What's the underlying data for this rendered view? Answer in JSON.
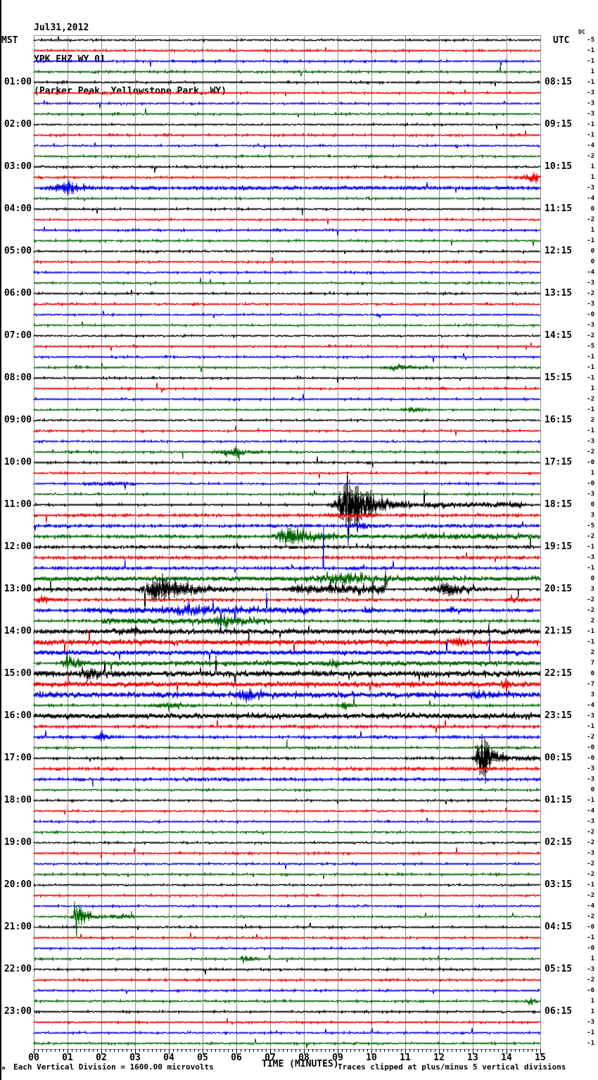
{
  "header": {
    "date": "Jul31,2012",
    "station": "YPK EHZ WY 01",
    "location": "(Parker Peak, Yellowstone Park, WY)"
  },
  "left_axis": {
    "label": "MST",
    "hours": [
      "01:00",
      "02:00",
      "03:00",
      "04:00",
      "05:00",
      "06:00",
      "07:00",
      "08:00",
      "09:00",
      "10:00",
      "11:00",
      "12:00",
      "13:00",
      "14:00",
      "15:00",
      "16:00",
      "17:00",
      "18:00",
      "19:00",
      "20:00",
      "21:00",
      "22:00",
      "23:00"
    ]
  },
  "right_axis": {
    "label": "UTC",
    "dc_label": "DC",
    "hours": [
      "08:15",
      "09:15",
      "10:15",
      "11:15",
      "12:15",
      "13:15",
      "14:15",
      "15:15",
      "16:15",
      "17:15",
      "18:15",
      "19:15",
      "20:15",
      "21:15",
      "22:15",
      "23:15",
      "00:15",
      "01:15",
      "02:15",
      "03:15",
      "04:15",
      "05:15",
      "06:15"
    ],
    "dc_values": [
      "-5",
      "-1",
      "-1",
      "1",
      "-1",
      "-3",
      "-3",
      "-3",
      "-1",
      "-1",
      "-4",
      "-2",
      "1",
      "1",
      "-3",
      "-4",
      "0",
      "-2",
      "1",
      "-1",
      "0",
      "0",
      "-4",
      "-3",
      "-2",
      "-3",
      "-0",
      "-3",
      "-2",
      "-5",
      "-1",
      "-1",
      "-1",
      "1",
      "-2",
      "-1",
      "2",
      "-1",
      "-3",
      "-2",
      "-0",
      "1",
      "-0",
      "-3",
      "0",
      "3",
      "-5",
      "-2",
      "-1",
      "-3",
      "-1",
      "0",
      "3",
      "-2",
      "-2",
      "2",
      "-1",
      "-1",
      "2",
      "7",
      "0",
      "-7",
      "3",
      "-4",
      "-3",
      "-1",
      "-2",
      "-0",
      "-0",
      "-3",
      "-3",
      "0",
      "-1",
      "-4",
      "-3",
      "-2",
      "-2",
      "-3",
      "-2",
      "-2",
      "-1",
      "-2",
      "-4",
      "-2",
      "-0",
      "-1",
      "-0",
      "1",
      "-3",
      "-2",
      "-6",
      "1",
      "1",
      "-3",
      "-1",
      "-1"
    ]
  },
  "x_axis": {
    "labels": [
      "00",
      "01",
      "02",
      "03",
      "04",
      "05",
      "06",
      "07",
      "08",
      "09",
      "10",
      "11",
      "12",
      "13",
      "14",
      "15"
    ],
    "title": "TIME (MINUTES)"
  },
  "footer": {
    "left_note": "Each Vertical Division = 1600.00 microvolts",
    "right_note": "Traces clipped at plus/minus 5 vertical divisions",
    "corner_mark": "M"
  },
  "chart_data": {
    "type": "line",
    "subtype": "helicorder-seismogram",
    "title": "YPK EHZ WY 01 (Parker Peak, Yellowstone Park, WY) Jul31,2012",
    "x_axis_title": "TIME (MINUTES)",
    "x_range": [
      0,
      15
    ],
    "rows": 96,
    "minutes_per_row": 15,
    "first_row_mst": "00:00",
    "trace_color_cycle": [
      "#000000",
      "#ee0000",
      "#0000ee",
      "#006600"
    ],
    "grid_color": "#909090",
    "grid_on": true,
    "clip_divisions": 5,
    "events": [
      {
        "row": 13,
        "type": "burst",
        "start": 14.05,
        "peak": 14.9,
        "end": 15,
        "amp": 9
      },
      {
        "row": 14,
        "type": "burst",
        "start": 0,
        "peak": 1.0,
        "end": 2.6,
        "amp": 11
      },
      {
        "row": 14,
        "type": "elevated",
        "start": 2.6,
        "end": 15,
        "amp": 1.3
      },
      {
        "row": 16,
        "type": "spike",
        "at": 7.95,
        "dir": -1,
        "amp": 9
      },
      {
        "row": 31,
        "type": "burst",
        "start": 10.0,
        "peak": 10.8,
        "end": 12.2,
        "amp": 4
      },
      {
        "row": 35,
        "type": "burst",
        "start": 10.6,
        "peak": 11.2,
        "end": 12.0,
        "amp": 4
      },
      {
        "row": 39,
        "type": "burst",
        "start": 4.9,
        "peak": 6.0,
        "end": 7.0,
        "amp": 5
      },
      {
        "row": 39,
        "type": "spike",
        "at": 4.42,
        "dir": -1,
        "amp": 10
      },
      {
        "row": 39,
        "type": "spike",
        "at": 6.08,
        "dir": -1,
        "amp": 14
      },
      {
        "row": 40,
        "type": "spike",
        "at": 10.05,
        "dir": -1,
        "amp": 7
      },
      {
        "row": 42,
        "type": "elevated",
        "start": 1.5,
        "end": 3.0,
        "amp": 2
      },
      {
        "row": 44,
        "type": "burst",
        "start": 8.65,
        "peak": 9.3,
        "end": 11.5,
        "amp": 46,
        "clip": 47
      },
      {
        "row": 44,
        "type": "spike",
        "at": 9.3,
        "dir": 0,
        "amp": 47
      },
      {
        "row": 44,
        "type": "elevated",
        "start": 11.5,
        "end": 14.5,
        "amp": 3
      },
      {
        "row": 45,
        "type": "elevated",
        "start": 8.7,
        "end": 10.2,
        "amp": 2.5
      },
      {
        "row": 46,
        "type": "burst",
        "start": 9.2,
        "peak": 9.6,
        "end": 10.6,
        "amp": 6
      },
      {
        "row": 46,
        "type": "spike",
        "at": 9.32,
        "dir": -1,
        "amp": 28
      },
      {
        "row": 47,
        "type": "burst",
        "start": 6.95,
        "peak": 7.4,
        "end": 10.8,
        "amp": 13
      },
      {
        "row": 47,
        "type": "elevated",
        "start": 10.8,
        "end": 15,
        "amp": 3
      },
      {
        "row": 50,
        "type": "spike",
        "at": 2.7,
        "dir": 1,
        "amp": 13
      },
      {
        "row": 50,
        "type": "spike",
        "at": 8.58,
        "dir": 1,
        "amp": 60
      },
      {
        "row": 51,
        "type": "elevated",
        "start": 0,
        "end": 15,
        "amp": 2.2
      },
      {
        "row": 51,
        "type": "burst",
        "start": 7.6,
        "peak": 9.0,
        "end": 12.5,
        "amp": 6
      },
      {
        "row": 52,
        "type": "elevated",
        "start": 0,
        "end": 2.78,
        "amp": 1.5
      },
      {
        "row": 52,
        "type": "burst",
        "start": 2.78,
        "peak": 3.6,
        "end": 7.6,
        "amp": 17
      },
      {
        "row": 52,
        "type": "elevated",
        "start": 7.6,
        "end": 10.4,
        "amp": 6
      },
      {
        "row": 52,
        "type": "burst",
        "start": 11.3,
        "peak": 12.3,
        "end": 13.9,
        "amp": 12
      },
      {
        "row": 52,
        "type": "spike",
        "at": 10.42,
        "dir": 1,
        "amp": 26
      },
      {
        "row": 52,
        "type": "spike",
        "at": 14.35,
        "dir": -1,
        "amp": 12
      },
      {
        "row": 53,
        "type": "burst",
        "start": 0,
        "peak": 0.25,
        "end": 1.0,
        "amp": 6
      },
      {
        "row": 53,
        "type": "burst",
        "start": 13.8,
        "peak": 14.2,
        "end": 14.8,
        "amp": 5
      },
      {
        "row": 54,
        "type": "elevated",
        "start": 1.5,
        "end": 8.5,
        "amp": 3.5
      },
      {
        "row": 54,
        "type": "burst",
        "start": 3.5,
        "peak": 4.5,
        "end": 7.8,
        "amp": 5
      },
      {
        "row": 54,
        "type": "burst",
        "start": 9.6,
        "peak": 9.9,
        "end": 10.4,
        "amp": 5
      },
      {
        "row": 54,
        "type": "burst",
        "start": 12.0,
        "peak": 12.4,
        "end": 13.0,
        "amp": 5
      },
      {
        "row": 55,
        "type": "elevated",
        "start": 2,
        "end": 7,
        "amp": 3
      },
      {
        "row": 55,
        "type": "burst",
        "start": 5.1,
        "peak": 5.6,
        "end": 6.9,
        "amp": 6
      },
      {
        "row": 55,
        "type": "spike",
        "at": 4.7,
        "dir": -1,
        "amp": 8
      },
      {
        "row": 56,
        "type": "elevated",
        "start": 0,
        "end": 15,
        "amp": 2.6
      },
      {
        "row": 56,
        "type": "spike",
        "at": 6.38,
        "dir": -1,
        "amp": 20
      },
      {
        "row": 56,
        "type": "spike",
        "at": 13.48,
        "dir": 0,
        "amp": 12
      },
      {
        "row": 56,
        "type": "burst",
        "start": 2.6,
        "peak": 3.0,
        "end": 3.6,
        "amp": 4
      },
      {
        "row": 57,
        "type": "elevated",
        "start": 0,
        "end": 15,
        "amp": 2.6
      },
      {
        "row": 57,
        "type": "burst",
        "start": 11.9,
        "peak": 12.6,
        "end": 13.2,
        "amp": 6
      },
      {
        "row": 58,
        "type": "elevated",
        "start": 0,
        "end": 15,
        "amp": 2.2
      },
      {
        "row": 58,
        "type": "spike",
        "at": 13.5,
        "dir": 0,
        "amp": 26
      },
      {
        "row": 59,
        "type": "burst",
        "start": 0.7,
        "peak": 1.0,
        "end": 2.2,
        "amp": 12
      },
      {
        "row": 59,
        "type": "elevated",
        "start": 2.2,
        "end": 15,
        "amp": 2.4
      },
      {
        "row": 59,
        "type": "burst",
        "start": 8.5,
        "peak": 8.8,
        "end": 9.3,
        "amp": 5
      },
      {
        "row": 60,
        "type": "elevated",
        "start": 0,
        "end": 15,
        "amp": 3
      },
      {
        "row": 60,
        "type": "burst",
        "start": 1.0,
        "peak": 1.6,
        "end": 3.2,
        "amp": 5
      },
      {
        "row": 61,
        "type": "elevated",
        "start": 0,
        "end": 15,
        "amp": 2.4
      },
      {
        "row": 61,
        "type": "spike",
        "at": 1.02,
        "dir": 1,
        "amp": 17
      },
      {
        "row": 61,
        "type": "burst",
        "start": 13.7,
        "peak": 13.95,
        "end": 14.4,
        "amp": 9
      },
      {
        "row": 62,
        "type": "elevated",
        "start": 0,
        "end": 15,
        "amp": 3
      },
      {
        "row": 62,
        "type": "burst",
        "start": 5.8,
        "peak": 6.3,
        "end": 7.3,
        "amp": 8
      },
      {
        "row": 62,
        "type": "burst",
        "start": 12.8,
        "peak": 13.2,
        "end": 14.2,
        "amp": 5
      },
      {
        "row": 63,
        "type": "burst",
        "start": 3.2,
        "peak": 4.0,
        "end": 5.2,
        "amp": 5
      },
      {
        "row": 63,
        "type": "burst",
        "start": 8.9,
        "peak": 9.2,
        "end": 9.7,
        "amp": 5
      },
      {
        "row": 64,
        "type": "elevated",
        "start": 0,
        "end": 15,
        "amp": 2.4
      },
      {
        "row": 66,
        "type": "burst",
        "start": 1.7,
        "peak": 2.0,
        "end": 2.6,
        "amp": 6
      },
      {
        "row": 67,
        "type": "spike",
        "at": 7.5,
        "dir": 1,
        "amp": 12
      },
      {
        "row": 68,
        "type": "burst",
        "start": 12.95,
        "peak": 13.25,
        "end": 14.3,
        "amp": 42,
        "clip": 40
      },
      {
        "row": 68,
        "type": "elevated",
        "start": 14.3,
        "end": 15,
        "amp": 3
      },
      {
        "row": 70,
        "type": "spike",
        "at": 1.75,
        "dir": -1,
        "amp": 11
      },
      {
        "row": 83,
        "type": "burst",
        "start": 1.05,
        "peak": 1.3,
        "end": 2.2,
        "amp": 20
      },
      {
        "row": 83,
        "type": "spike",
        "at": 1.2,
        "dir": 1,
        "amp": 22
      },
      {
        "row": 83,
        "type": "spike",
        "at": 1.28,
        "dir": -1,
        "amp": 30
      },
      {
        "row": 83,
        "type": "elevated",
        "start": 2.2,
        "end": 3.0,
        "amp": 3
      },
      {
        "row": 83,
        "type": "spike",
        "at": 2.9,
        "dir": 1,
        "amp": 8
      },
      {
        "row": 87,
        "type": "burst",
        "start": 6.05,
        "peak": 6.2,
        "end": 6.7,
        "amp": 9
      },
      {
        "row": 91,
        "type": "burst",
        "start": 14.5,
        "peak": 14.75,
        "end": 15,
        "amp": 5
      }
    ]
  }
}
